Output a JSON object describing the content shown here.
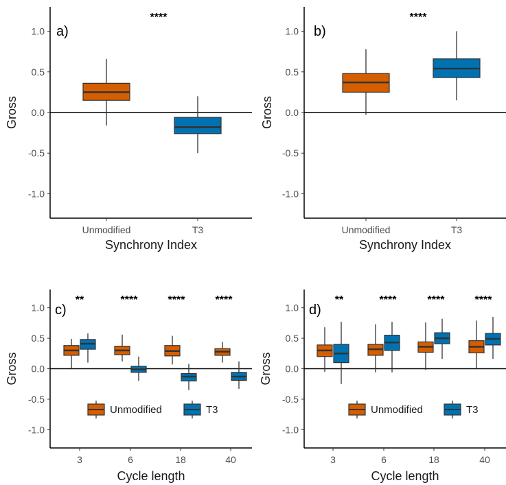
{
  "colors": {
    "unmodified": "#d55e00",
    "t3": "#0072b2",
    "median": "#333333",
    "whisker": "#333333",
    "axis": "#000000"
  },
  "chart_data": [
    {
      "type": "box",
      "panel_label": "a)",
      "xlabel": "Synchrony Index",
      "ylabel": "Gross",
      "ylim": [
        -1.3,
        1.3
      ],
      "yticks": [
        "1.0",
        "0.5",
        "0.0",
        "-0.5",
        "-1.0"
      ],
      "ytick_values": [
        1.0,
        0.5,
        0.0,
        -0.5,
        -1.0
      ],
      "categories": [
        "Unmodified",
        "T3"
      ],
      "significance": [
        "****"
      ],
      "boxes": [
        {
          "category": "Unmodified",
          "series": "unmodified",
          "min": -0.16,
          "q1": 0.15,
          "median": 0.25,
          "q3": 0.36,
          "max": 0.66
        },
        {
          "category": "T3",
          "series": "t3",
          "min": -0.5,
          "q1": -0.26,
          "median": -0.18,
          "q3": -0.06,
          "max": 0.2
        }
      ]
    },
    {
      "type": "box",
      "panel_label": "b)",
      "xlabel": "Synchrony Index",
      "ylabel": "Gross",
      "ylim": [
        -1.3,
        1.3
      ],
      "yticks": [
        "1.0",
        "0.5",
        "0.0",
        "-0.5",
        "-1.0"
      ],
      "ytick_values": [
        1.0,
        0.5,
        0.0,
        -0.5,
        -1.0
      ],
      "categories": [
        "Unmodified",
        "T3"
      ],
      "significance": [
        "****"
      ],
      "boxes": [
        {
          "category": "Unmodified",
          "series": "unmodified",
          "min": -0.03,
          "q1": 0.25,
          "median": 0.37,
          "q3": 0.48,
          "max": 0.78
        },
        {
          "category": "T3",
          "series": "t3",
          "min": 0.15,
          "q1": 0.43,
          "median": 0.54,
          "q3": 0.66,
          "max": 1.0
        }
      ]
    },
    {
      "type": "box",
      "panel_label": "c)",
      "xlabel": "Cycle length",
      "ylabel": "Gross",
      "ylim": [
        -1.3,
        1.3
      ],
      "yticks": [
        "1.0",
        "0.5",
        "0.0",
        "-0.5",
        "-1.0"
      ],
      "ytick_values": [
        1.0,
        0.5,
        0.0,
        -0.5,
        -1.0
      ],
      "categories": [
        "3",
        "6",
        "18",
        "40"
      ],
      "significance": [
        "**",
        "****",
        "****",
        "****"
      ],
      "legend": [
        "Unmodified",
        "T3"
      ],
      "boxes": [
        {
          "category": "3",
          "series": "unmodified",
          "min": 0.0,
          "q1": 0.22,
          "median": 0.3,
          "q3": 0.38,
          "max": 0.49
        },
        {
          "category": "3",
          "series": "t3",
          "min": 0.1,
          "q1": 0.32,
          "median": 0.41,
          "q3": 0.48,
          "max": 0.58
        },
        {
          "category": "6",
          "series": "unmodified",
          "min": 0.12,
          "q1": 0.23,
          "median": 0.3,
          "q3": 0.37,
          "max": 0.56
        },
        {
          "category": "6",
          "series": "t3",
          "min": -0.2,
          "q1": -0.06,
          "median": -0.01,
          "q3": 0.04,
          "max": 0.2
        },
        {
          "category": "18",
          "series": "unmodified",
          "min": 0.07,
          "q1": 0.21,
          "median": 0.29,
          "q3": 0.38,
          "max": 0.54
        },
        {
          "category": "18",
          "series": "t3",
          "min": -0.35,
          "q1": -0.2,
          "median": -0.13,
          "q3": -0.08,
          "max": 0.08
        },
        {
          "category": "40",
          "series": "unmodified",
          "min": 0.1,
          "q1": 0.22,
          "median": 0.28,
          "q3": 0.33,
          "max": 0.44
        },
        {
          "category": "40",
          "series": "t3",
          "min": -0.33,
          "q1": -0.19,
          "median": -0.13,
          "q3": -0.06,
          "max": 0.12
        }
      ]
    },
    {
      "type": "box",
      "panel_label": "d)",
      "xlabel": "Cycle length",
      "ylabel": "Gross",
      "ylim": [
        -1.3,
        1.3
      ],
      "yticks": [
        "1.0",
        "0.5",
        "0.0",
        "-0.5",
        "-1.0"
      ],
      "ytick_values": [
        1.0,
        0.5,
        0.0,
        -0.5,
        -1.0
      ],
      "categories": [
        "3",
        "6",
        "18",
        "40"
      ],
      "significance": [
        "**",
        "****",
        "****",
        "****"
      ],
      "legend": [
        "Unmodified",
        "T3"
      ],
      "boxes": [
        {
          "category": "3",
          "series": "unmodified",
          "min": -0.05,
          "q1": 0.2,
          "median": 0.3,
          "q3": 0.39,
          "max": 0.68
        },
        {
          "category": "3",
          "series": "t3",
          "min": -0.25,
          "q1": 0.1,
          "median": 0.25,
          "q3": 0.4,
          "max": 0.77
        },
        {
          "category": "6",
          "series": "unmodified",
          "min": -0.06,
          "q1": 0.22,
          "median": 0.32,
          "q3": 0.4,
          "max": 0.73
        },
        {
          "category": "6",
          "series": "t3",
          "min": -0.06,
          "q1": 0.3,
          "median": 0.43,
          "q3": 0.55,
          "max": 0.77
        },
        {
          "category": "18",
          "series": "unmodified",
          "min": -0.02,
          "q1": 0.27,
          "median": 0.36,
          "q3": 0.44,
          "max": 0.76
        },
        {
          "category": "18",
          "series": "t3",
          "min": 0.16,
          "q1": 0.41,
          "median": 0.5,
          "q3": 0.59,
          "max": 0.82
        },
        {
          "category": "40",
          "series": "unmodified",
          "min": 0.0,
          "q1": 0.26,
          "median": 0.36,
          "q3": 0.46,
          "max": 0.79
        },
        {
          "category": "40",
          "series": "t3",
          "min": 0.16,
          "q1": 0.39,
          "median": 0.49,
          "q3": 0.58,
          "max": 0.85
        }
      ]
    }
  ]
}
